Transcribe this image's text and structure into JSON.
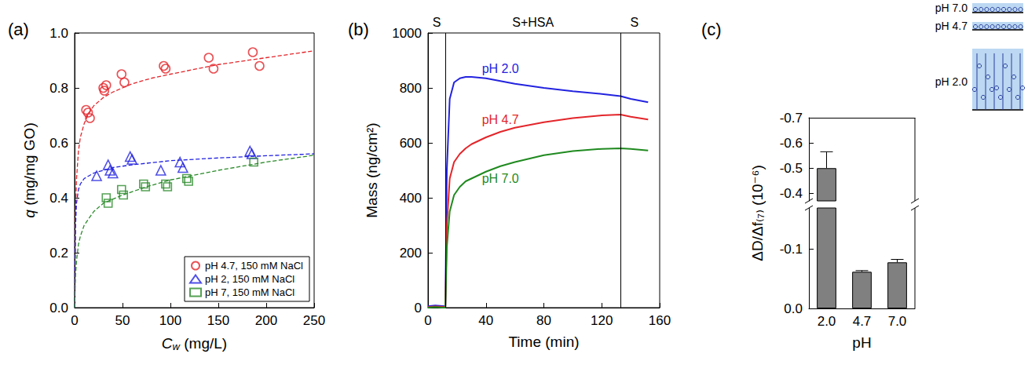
{
  "chart_data": [
    {
      "type": "scatter",
      "label": "(a)",
      "x_label": "Cw (mg/L)",
      "y_label": "q (mg/mg GO)",
      "xlim": [
        0,
        250
      ],
      "xticks": [
        0,
        50,
        100,
        150,
        200,
        250
      ],
      "ylim": [
        0,
        1
      ],
      "yticks": [
        {
          "value": 0,
          "label": "0.0"
        },
        0.2,
        0.4,
        0.6,
        0.8,
        {
          "value": 1,
          "label": "1.0"
        }
      ],
      "legend": "lower right",
      "series": [
        {
          "name": "pH 4.7, 150 mM NaCl",
          "color": "#e3262b",
          "marker": "circle",
          "x": [
            12,
            14,
            16,
            30,
            31,
            33,
            49,
            52,
            93,
            95,
            140,
            145,
            186,
            193
          ],
          "values": [
            0.72,
            0.71,
            0.69,
            0.8,
            0.79,
            0.81,
            0.85,
            0.82,
            0.88,
            0.87,
            0.91,
            0.87,
            0.93,
            0.88
          ],
          "fit": {
            "x": [
              0,
              1,
              2,
              4,
              6,
              10,
              15,
              20,
              30,
              40,
              60,
              80,
              100,
              150,
              200,
              250
            ],
            "values": [
              0,
              0.35,
              0.47,
              0.57,
              0.62,
              0.67,
              0.71,
              0.735,
              0.765,
              0.785,
              0.815,
              0.835,
              0.85,
              0.885,
              0.91,
              0.935
            ],
            "line_style": "dashed"
          }
        },
        {
          "name": "pH 2, 150 mM NaCl",
          "color": "#2323e0",
          "marker": "triangle",
          "x": [
            23,
            35,
            37,
            40,
            58,
            60,
            90,
            110,
            113,
            183,
            185
          ],
          "values": [
            0.48,
            0.52,
            0.5,
            0.49,
            0.55,
            0.54,
            0.5,
            0.53,
            0.51,
            0.57,
            0.56
          ],
          "fit": {
            "x": [
              0,
              1,
              2,
              4,
              6,
              10,
              20,
              40,
              60,
              100,
              150,
              200,
              250
            ],
            "values": [
              0,
              0.3,
              0.38,
              0.43,
              0.45,
              0.47,
              0.49,
              0.51,
              0.52,
              0.535,
              0.545,
              0.553,
              0.56
            ],
            "line_style": "dashed"
          }
        },
        {
          "name": "pH 7, 150 mM NaCl",
          "color": "#2a8a2a",
          "marker": "square",
          "x": [
            33,
            35,
            49,
            51,
            72,
            74,
            95,
            97,
            117,
            119,
            187
          ],
          "values": [
            0.4,
            0.38,
            0.43,
            0.41,
            0.45,
            0.44,
            0.45,
            0.44,
            0.47,
            0.46,
            0.53
          ],
          "fit": {
            "x": [
              0,
              1,
              2,
              4,
              6,
              10,
              20,
              30,
              50,
              75,
              100,
              150,
              200,
              250
            ],
            "values": [
              0,
              0.12,
              0.17,
              0.23,
              0.26,
              0.3,
              0.35,
              0.38,
              0.41,
              0.44,
              0.465,
              0.5,
              0.53,
              0.555
            ],
            "line_style": "dashed"
          }
        }
      ]
    },
    {
      "type": "line",
      "label": "(b)",
      "x_label": "Time (min)",
      "y_label": "Mass (ng/cm²)",
      "xlim": [
        0,
        160
      ],
      "xticks": [
        0,
        40,
        80,
        120,
        160
      ],
      "ylim": [
        0,
        1000
      ],
      "yticks": [
        0,
        200,
        400,
        600,
        800,
        1000
      ],
      "phases": [
        {
          "label": "S",
          "start": 0,
          "end": 12
        },
        {
          "label": "S+HSA",
          "start": 12,
          "end": 133
        },
        {
          "label": "S",
          "start": 133,
          "end": 152
        }
      ],
      "x": [
        0,
        5,
        10,
        12,
        13,
        15,
        18,
        22,
        26,
        30,
        40,
        50,
        60,
        80,
        100,
        120,
        133,
        140,
        152
      ],
      "series": [
        {
          "name": "pH 2.0",
          "color": "#2323e0",
          "values": [
            5,
            8,
            6,
            5,
            500,
            760,
            820,
            835,
            840,
            840,
            835,
            825,
            815,
            800,
            788,
            778,
            770,
            760,
            748
          ]
        },
        {
          "name": "pH 4.7",
          "color": "#e3262b",
          "values": [
            2,
            4,
            3,
            3,
            300,
            470,
            530,
            560,
            580,
            595,
            620,
            640,
            655,
            675,
            690,
            700,
            703,
            695,
            685
          ]
        },
        {
          "name": "pH 7.0",
          "color": "#1f8a1f",
          "values": [
            0,
            2,
            0,
            0,
            220,
            350,
            410,
            440,
            460,
            470,
            495,
            515,
            530,
            555,
            570,
            578,
            580,
            578,
            572
          ]
        }
      ]
    },
    {
      "type": "bar",
      "label": "(c)",
      "x_label": "pH",
      "y_label": "ΔD/Δf₍₇₎ (10⁻⁶)",
      "categories": [
        "2.0",
        "4.7",
        "7.0"
      ],
      "values": [
        -0.5,
        -0.062,
        -0.078
      ],
      "errors": [
        0.065,
        0.002,
        0.005
      ],
      "color": "#808080",
      "ylim": [
        0,
        -0.7
      ],
      "axis_break": [
        -0.17,
        -0.37
      ],
      "yticks": [
        {
          "value": 0,
          "label": "0.0"
        },
        -0.1,
        -0.4,
        -0.5,
        -0.6,
        -0.7
      ],
      "inset": {
        "labels": [
          "pH 7.0",
          "pH 4.7",
          "pH 2.0"
        ]
      }
    }
  ]
}
